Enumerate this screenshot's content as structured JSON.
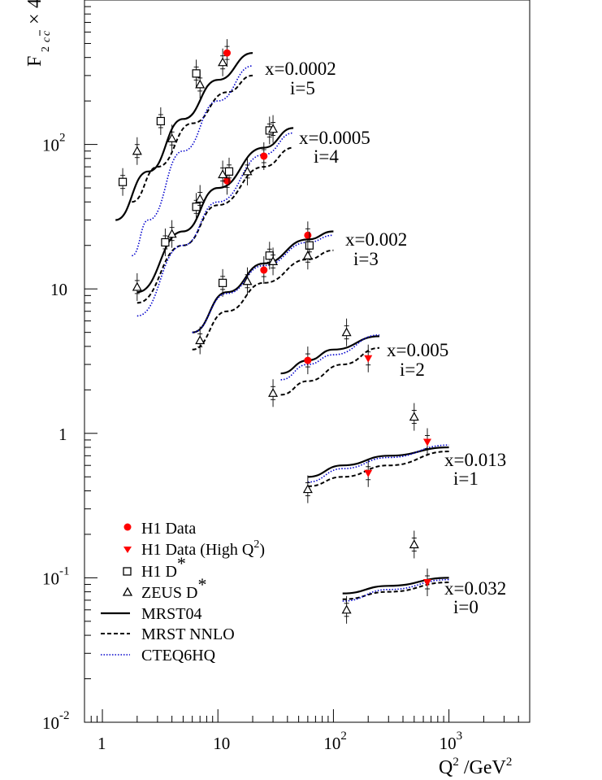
{
  "chart_data": {
    "type": "scatter",
    "x_scale": "log",
    "y_scale": "log",
    "xlim": [
      0.7,
      5000
    ],
    "ylim": [
      0.01,
      1000
    ],
    "xlabel": {
      "base": "Q",
      "sup": "2",
      "mid": " /GeV",
      "sup2": "2"
    },
    "ylabel": "F",
    "x_ticks": [
      {
        "value": 1,
        "base": "1",
        "exp": ""
      },
      {
        "value": 10,
        "base": "10",
        "exp": ""
      },
      {
        "value": 100,
        "base": "10",
        "exp": "2"
      },
      {
        "value": 1000,
        "base": "10",
        "exp": "3"
      }
    ],
    "y_ticks": [
      {
        "value": 0.01,
        "base": "10",
        "exp": "-2"
      },
      {
        "value": 0.1,
        "base": "10",
        "exp": "-1"
      },
      {
        "value": 1,
        "base": "1",
        "exp": ""
      },
      {
        "value": 10,
        "base": "10",
        "exp": ""
      },
      {
        "value": 100,
        "base": "10",
        "exp": "2"
      }
    ],
    "bin_labels": [
      {
        "x_label": "x=0.0002",
        "i_label": "i=5"
      },
      {
        "x_label": "x=0.0005",
        "i_label": "i=4"
      },
      {
        "x_label": "x=0.002",
        "i_label": "i=3"
      },
      {
        "x_label": "x=0.005",
        "i_label": "i=2"
      },
      {
        "x_label": "x=0.013",
        "i_label": "i=1"
      },
      {
        "x_label": "x=0.032",
        "i_label": "i=0"
      }
    ],
    "legend": [
      {
        "text": "H1 Data",
        "sup": "",
        "suffix": "",
        "marker": "circle-red"
      },
      {
        "text": "H1 Data (High Q",
        "sup": "2",
        "suffix": ")",
        "marker": "triangle-down-red"
      },
      {
        "text": "H1 D",
        "sup": "*",
        "suffix": "",
        "marker": "open-square"
      },
      {
        "text": "ZEUS D",
        "sup": "*",
        "suffix": "",
        "marker": "open-triangle"
      },
      {
        "text": "MRST04",
        "sup": "",
        "suffix": "",
        "marker": "solid-line"
      },
      {
        "text": "MRST NNLO",
        "sup": "",
        "suffix": "",
        "marker": "dashed-line"
      },
      {
        "text": "CTEQ6HQ",
        "sup": "",
        "suffix": "",
        "marker": "dotted-blue-line"
      }
    ],
    "colors": {
      "h1": "#ff0000",
      "cteq": "#0000cc",
      "frame": "#000000"
    },
    "series": [
      {
        "name": "H1 Data",
        "marker": "circle",
        "points": [
          [
            12,
            430
          ],
          [
            12,
            56
          ],
          [
            25,
            83
          ],
          [
            25,
            13.5
          ],
          [
            60,
            23.5
          ],
          [
            60,
            3.2
          ]
        ]
      },
      {
        "name": "H1 Data (High Q2)",
        "marker": "triangle-down",
        "points": [
          [
            200,
            3.3
          ],
          [
            200,
            0.53
          ],
          [
            650,
            0.87
          ],
          [
            650,
            0.093
          ]
        ]
      },
      {
        "name": "H1 D*",
        "marker": "square",
        "points": [
          [
            1.5,
            55
          ],
          [
            3.2,
            145
          ],
          [
            6.5,
            310
          ],
          [
            3.5,
            21
          ],
          [
            6.5,
            37
          ],
          [
            12.5,
            65
          ],
          [
            28,
            125
          ],
          [
            11,
            11
          ],
          [
            28,
            17
          ],
          [
            62,
            20
          ]
        ]
      },
      {
        "name": "ZEUS D*",
        "marker": "triangle",
        "points": [
          [
            2,
            90
          ],
          [
            4,
            110
          ],
          [
            7,
            260
          ],
          [
            11,
            370
          ],
          [
            2,
            10.3
          ],
          [
            4,
            24
          ],
          [
            7,
            42
          ],
          [
            11,
            62
          ],
          [
            18,
            65
          ],
          [
            30,
            128
          ],
          [
            7,
            4.4
          ],
          [
            18,
            11.3
          ],
          [
            30,
            15.5
          ],
          [
            60,
            17
          ],
          [
            30,
            1.9
          ],
          [
            130,
            5
          ],
          [
            60,
            0.41
          ],
          [
            500,
            1.3
          ],
          [
            130,
            0.06
          ],
          [
            500,
            0.17
          ]
        ]
      },
      {
        "name": "MRST04",
        "style": "solid",
        "curves": [
          [
            [
              1.3,
              30
            ],
            [
              2.5,
              65
            ],
            [
              5,
              150
            ],
            [
              10,
              280
            ],
            [
              20,
              430
            ]
          ],
          [
            [
              2,
              9.5
            ],
            [
              5,
              25
            ],
            [
              10,
              50
            ],
            [
              25,
              95
            ],
            [
              45,
              130
            ]
          ],
          [
            [
              6,
              5
            ],
            [
              12,
              9.5
            ],
            [
              25,
              15
            ],
            [
              60,
              22
            ],
            [
              100,
              25
            ]
          ],
          [
            [
              35,
              2.6
            ],
            [
              60,
              3.2
            ],
            [
              100,
              3.8
            ],
            [
              250,
              4.7
            ]
          ],
          [
            [
              60,
              0.5
            ],
            [
              120,
              0.6
            ],
            [
              300,
              0.7
            ],
            [
              1000,
              0.8
            ]
          ],
          [
            [
              120,
              0.078
            ],
            [
              300,
              0.088
            ],
            [
              1000,
              0.1
            ]
          ]
        ]
      },
      {
        "name": "MRST NNLO",
        "style": "dashed",
        "curves": [
          [
            [
              1.8,
              40
            ],
            [
              3,
              70
            ],
            [
              6,
              140
            ],
            [
              12,
              230
            ],
            [
              20,
              300
            ]
          ],
          [
            [
              2,
              8
            ],
            [
              5,
              20
            ],
            [
              10,
              38
            ],
            [
              25,
              70
            ],
            [
              45,
              95
            ]
          ],
          [
            [
              6,
              3.8
            ],
            [
              12,
              7
            ],
            [
              25,
              11
            ],
            [
              60,
              16
            ],
            [
              100,
              18.5
            ]
          ],
          [
            [
              35,
              1.85
            ],
            [
              60,
              2.3
            ],
            [
              120,
              3
            ],
            [
              250,
              3.9
            ]
          ],
          [
            [
              60,
              0.43
            ],
            [
              120,
              0.5
            ],
            [
              300,
              0.6
            ],
            [
              1000,
              0.75
            ]
          ],
          [
            [
              120,
              0.071
            ],
            [
              300,
              0.08
            ],
            [
              1000,
              0.093
            ]
          ]
        ]
      },
      {
        "name": "CTEQ6HQ",
        "style": "dotted",
        "curves": [
          [
            [
              1.8,
              17
            ],
            [
              2.5,
              30
            ],
            [
              5,
              90
            ],
            [
              10,
              200
            ],
            [
              20,
              350
            ]
          ],
          [
            [
              2,
              6.5
            ],
            [
              5,
              20
            ],
            [
              10,
              40
            ],
            [
              25,
              85
            ],
            [
              45,
              120
            ]
          ],
          [
            [
              6,
              5
            ],
            [
              12,
              9.3
            ],
            [
              25,
              14.5
            ],
            [
              60,
              21
            ],
            [
              100,
              23.5
            ]
          ],
          [
            [
              35,
              2.35
            ],
            [
              60,
              3
            ],
            [
              100,
              3.5
            ],
            [
              250,
              4.8
            ]
          ],
          [
            [
              60,
              0.46
            ],
            [
              120,
              0.57
            ],
            [
              300,
              0.68
            ],
            [
              1000,
              0.83
            ]
          ],
          [
            [
              120,
              0.069
            ],
            [
              300,
              0.083
            ],
            [
              1000,
              0.097
            ]
          ]
        ]
      }
    ]
  }
}
